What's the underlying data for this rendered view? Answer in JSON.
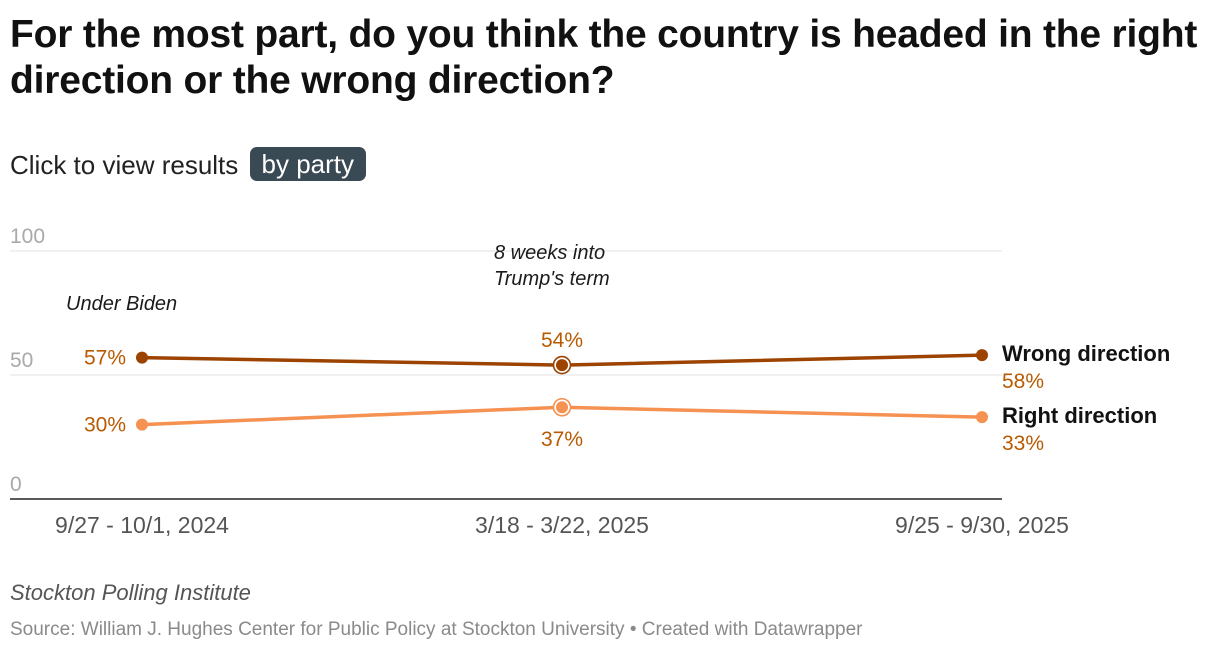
{
  "title": "For the most part, do you think the country is headed in the right direction or the wrong direction?",
  "subtitle": {
    "text": "Click to view results",
    "button_label": "by party"
  },
  "chart_data": {
    "type": "line",
    "categories": [
      "9/27 - 10/1, 2024",
      "3/18 - 3/22, 2025",
      "9/25 - 9/30, 2025"
    ],
    "ylim": [
      0,
      100
    ],
    "yticks": [
      "0",
      "50",
      "100"
    ],
    "series": [
      {
        "name": "Wrong direction",
        "values": [
          57,
          54,
          58
        ],
        "labels": [
          "57%",
          "54%",
          "58%"
        ],
        "color": "#9c4300"
      },
      {
        "name": "Right direction",
        "values": [
          30,
          37,
          33
        ],
        "labels": [
          "30%",
          "37%",
          "33%"
        ],
        "color": "#f59151"
      }
    ],
    "label_color": "#b85a00",
    "annotations": [
      {
        "text": "Under Biden"
      },
      {
        "lines": [
          "8 weeks into",
          "Trump's term"
        ]
      }
    ]
  },
  "notes": "Stockton Polling Institute",
  "source": "Source: William J. Hughes Center for Public Policy at Stockton University • Created with Datawrapper"
}
